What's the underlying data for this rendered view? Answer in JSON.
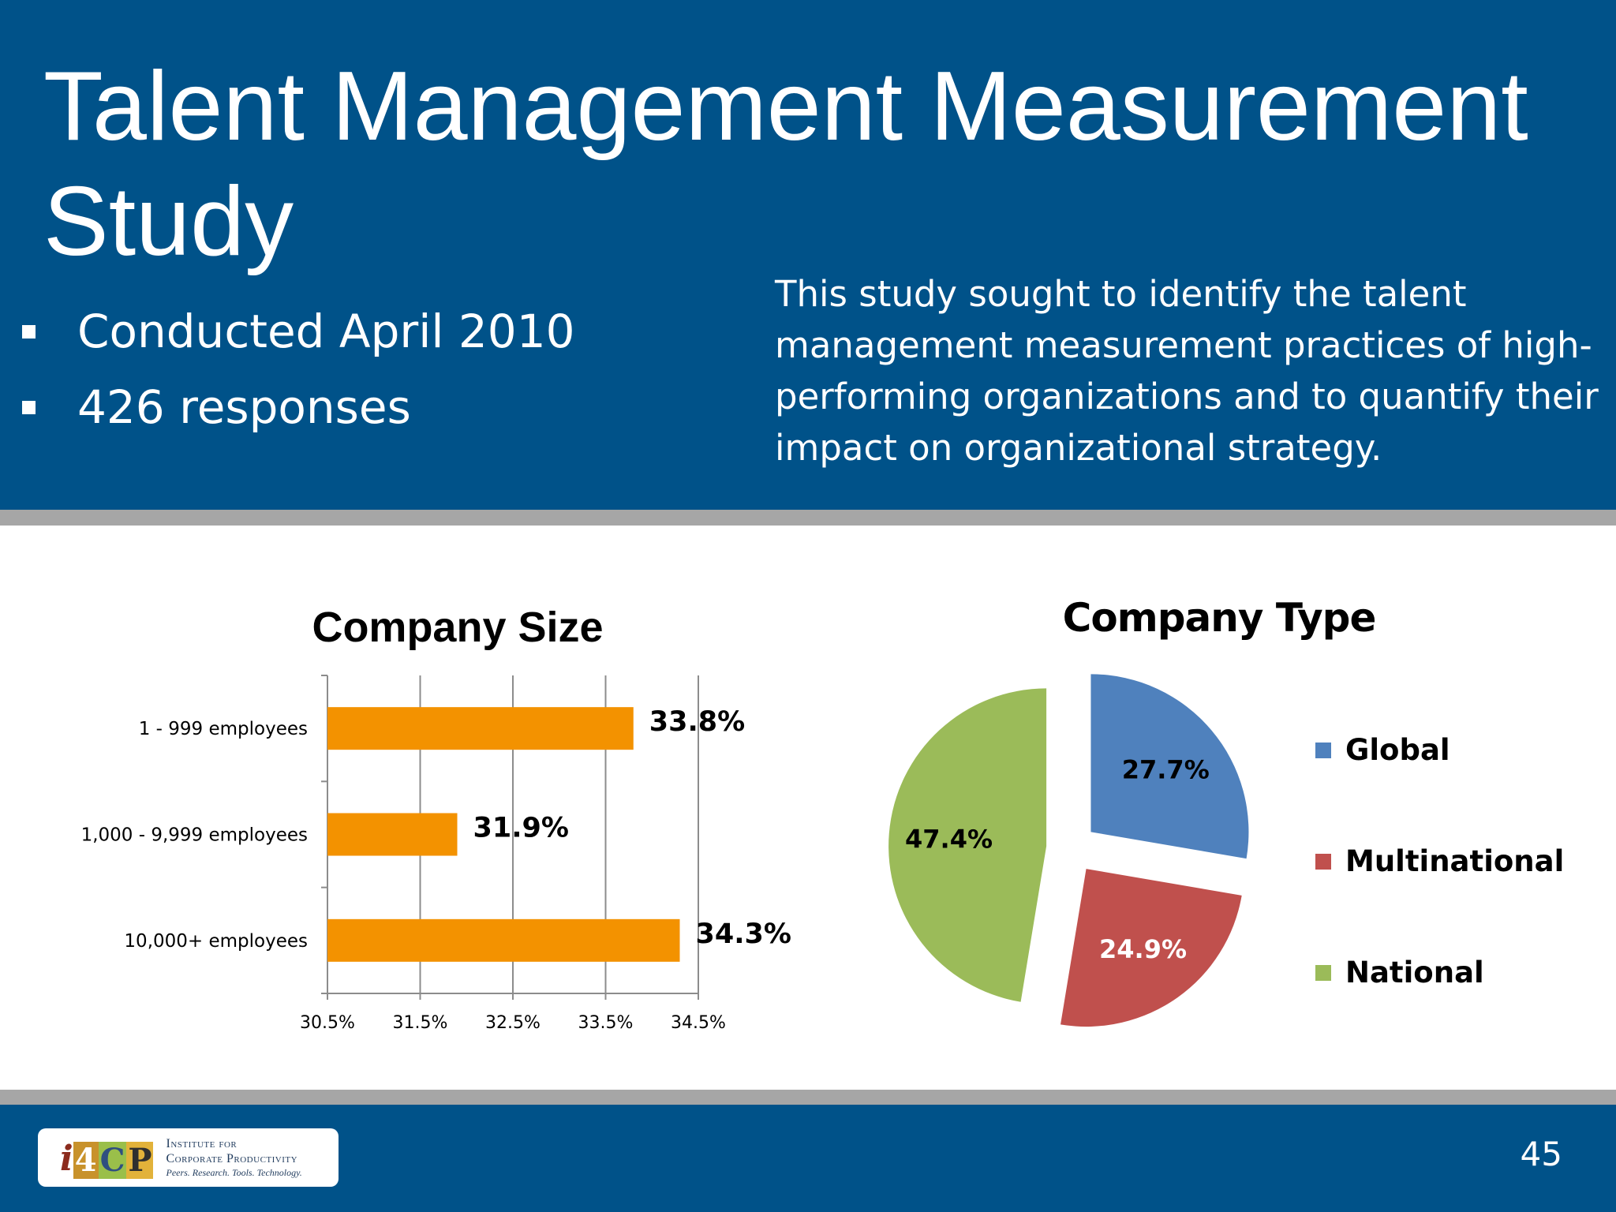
{
  "slide": {
    "title": "Talent Management Measurement Study",
    "bullets": [
      "Conducted April 2010",
      "426 responses"
    ],
    "description": "This study sought to identify the talent management measurement practices of high-performing organizations  and to quantify their impact on organizational strategy.",
    "page_number": "45"
  },
  "logo": {
    "mark": [
      "i",
      "4",
      "C",
      "P"
    ],
    "line1": "Institute for",
    "line2": "Corporate Productivity",
    "line3": "Peers. Research. Tools. Technology."
  },
  "colors": {
    "header_bg": "#005289",
    "divider": "#a6a6a6",
    "bar": "#f39200",
    "global": "#4f81bd",
    "multinational": "#c0504d",
    "national": "#9bbb59"
  },
  "chart_data": [
    {
      "type": "bar",
      "orientation": "horizontal",
      "title": "Company Size",
      "categories": [
        "1 - 999 employees",
        "1,000 - 9,999 employees",
        "10,000+ employees"
      ],
      "values": [
        33.8,
        31.9,
        34.3
      ],
      "data_labels": [
        "33.8%",
        "31.9%",
        "34.3%"
      ],
      "xlim": [
        30.5,
        34.5
      ],
      "xticks": [
        30.5,
        31.5,
        32.5,
        33.5,
        34.5
      ],
      "xtick_labels": [
        "30.5%",
        "31.5%",
        "32.5%",
        "33.5%",
        "34.5%"
      ],
      "grid": "vertical"
    },
    {
      "type": "pie",
      "title": "Company Type",
      "categories": [
        "Global",
        "Multinational",
        "National"
      ],
      "values": [
        27.7,
        24.9,
        47.4
      ],
      "data_labels": [
        "27.7%",
        "24.9%",
        "47.4%"
      ],
      "exploded": true,
      "legend": "right"
    }
  ]
}
